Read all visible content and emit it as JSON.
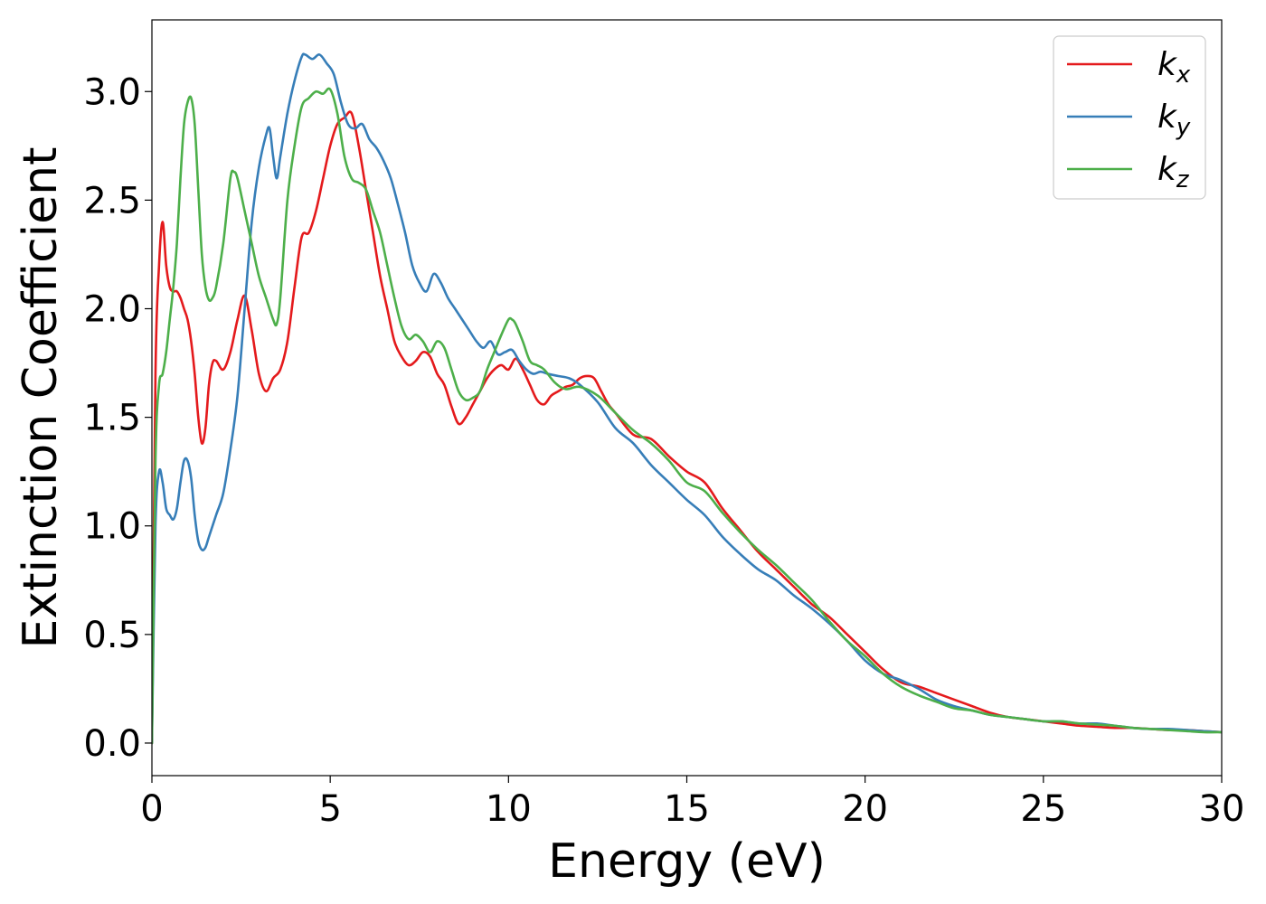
{
  "chart_data": {
    "type": "line",
    "title": "",
    "xlabel": "Energy (eV)",
    "ylabel": "Extinction Coefficient",
    "xlim": [
      0,
      30
    ],
    "ylim": [
      -0.15,
      3.33
    ],
    "xticks": [
      0,
      5,
      10,
      15,
      20,
      25,
      30
    ],
    "xtick_labels": [
      "0",
      "5",
      "10",
      "15",
      "20",
      "25",
      "30"
    ],
    "yticks": [
      0.0,
      0.5,
      1.0,
      1.5,
      2.0,
      2.5,
      3.0
    ],
    "ytick_labels": [
      "0.0",
      "0.5",
      "1.0",
      "1.5",
      "2.0",
      "2.5",
      "3.0"
    ],
    "grid": false,
    "legend": "top-right",
    "series": [
      {
        "name": "k",
        "subscript": "x",
        "color": "#e41a1c",
        "x": [
          0,
          0.1,
          0.2,
          0.3,
          0.4,
          0.5,
          0.6,
          0.7,
          0.8,
          0.9,
          1.0,
          1.1,
          1.2,
          1.3,
          1.4,
          1.5,
          1.6,
          1.7,
          1.8,
          2.0,
          2.2,
          2.4,
          2.6,
          2.8,
          3.0,
          3.2,
          3.4,
          3.6,
          3.8,
          4.0,
          4.2,
          4.4,
          4.6,
          4.8,
          5.0,
          5.2,
          5.4,
          5.6,
          5.8,
          6.0,
          6.2,
          6.4,
          6.6,
          6.8,
          7.0,
          7.2,
          7.4,
          7.6,
          7.8,
          8.0,
          8.2,
          8.4,
          8.6,
          8.8,
          9.0,
          9.2,
          9.4,
          9.6,
          9.8,
          10.0,
          10.2,
          10.4,
          10.6,
          10.8,
          11.0,
          11.2,
          11.4,
          11.6,
          11.8,
          12.0,
          12.2,
          12.4,
          12.6,
          12.8,
          13.0,
          13.5,
          14.0,
          14.5,
          15.0,
          15.5,
          16.0,
          16.5,
          17.0,
          17.5,
          18.0,
          18.5,
          19.0,
          19.5,
          20.0,
          20.5,
          21.0,
          21.5,
          22.0,
          22.5,
          23.0,
          23.5,
          24.0,
          24.5,
          25.0,
          25.5,
          26.0,
          26.5,
          27.0,
          27.5,
          28.0,
          28.5,
          29.0,
          29.5,
          30.0
        ],
        "y": [
          0.0,
          1.7,
          2.2,
          2.4,
          2.2,
          2.1,
          2.08,
          2.08,
          2.05,
          2.0,
          1.95,
          1.85,
          1.7,
          1.5,
          1.38,
          1.45,
          1.65,
          1.75,
          1.76,
          1.72,
          1.8,
          1.95,
          2.06,
          1.9,
          1.7,
          1.62,
          1.68,
          1.72,
          1.85,
          2.1,
          2.33,
          2.35,
          2.45,
          2.6,
          2.75,
          2.85,
          2.88,
          2.9,
          2.75,
          2.55,
          2.35,
          2.15,
          2.0,
          1.85,
          1.78,
          1.74,
          1.76,
          1.8,
          1.78,
          1.7,
          1.65,
          1.55,
          1.47,
          1.5,
          1.56,
          1.62,
          1.68,
          1.72,
          1.74,
          1.72,
          1.77,
          1.72,
          1.65,
          1.58,
          1.56,
          1.6,
          1.62,
          1.64,
          1.65,
          1.68,
          1.69,
          1.68,
          1.62,
          1.56,
          1.52,
          1.42,
          1.4,
          1.32,
          1.25,
          1.2,
          1.08,
          0.98,
          0.88,
          0.8,
          0.72,
          0.64,
          0.58,
          0.5,
          0.42,
          0.34,
          0.28,
          0.26,
          0.23,
          0.2,
          0.17,
          0.14,
          0.12,
          0.11,
          0.1,
          0.09,
          0.08,
          0.075,
          0.07,
          0.07,
          0.065,
          0.06,
          0.06,
          0.055,
          0.05
        ]
      },
      {
        "name": "k",
        "subscript": "y",
        "color": "#377eb8",
        "x": [
          0,
          0.1,
          0.2,
          0.3,
          0.4,
          0.5,
          0.6,
          0.7,
          0.8,
          0.9,
          1.0,
          1.1,
          1.2,
          1.3,
          1.4,
          1.5,
          1.6,
          1.8,
          2.0,
          2.2,
          2.4,
          2.6,
          2.8,
          3.0,
          3.2,
          3.3,
          3.4,
          3.5,
          3.6,
          3.8,
          4.0,
          4.2,
          4.3,
          4.5,
          4.7,
          4.9,
          5.1,
          5.3,
          5.5,
          5.7,
          5.9,
          6.1,
          6.3,
          6.5,
          6.7,
          6.9,
          7.1,
          7.3,
          7.5,
          7.7,
          7.9,
          8.1,
          8.3,
          8.5,
          8.7,
          8.9,
          9.1,
          9.3,
          9.5,
          9.7,
          9.9,
          10.1,
          10.3,
          10.5,
          10.7,
          10.9,
          11.1,
          11.4,
          11.7,
          12.0,
          12.5,
          13.0,
          13.5,
          14.0,
          14.5,
          15.0,
          15.5,
          16.0,
          16.5,
          17.0,
          17.5,
          18.0,
          18.5,
          19.0,
          19.5,
          20.0,
          20.5,
          21.0,
          21.5,
          22.0,
          22.5,
          23.0,
          23.5,
          24.0,
          24.5,
          25.0,
          25.5,
          26.0,
          26.5,
          27.0,
          27.5,
          28.0,
          28.5,
          29.0,
          29.5,
          30.0
        ],
        "y": [
          0.0,
          1.0,
          1.25,
          1.2,
          1.08,
          1.05,
          1.03,
          1.08,
          1.2,
          1.3,
          1.3,
          1.22,
          1.05,
          0.93,
          0.89,
          0.9,
          0.95,
          1.05,
          1.15,
          1.35,
          1.6,
          2.0,
          2.4,
          2.65,
          2.8,
          2.83,
          2.7,
          2.6,
          2.7,
          2.9,
          3.05,
          3.16,
          3.17,
          3.15,
          3.17,
          3.13,
          3.08,
          2.95,
          2.85,
          2.83,
          2.85,
          2.78,
          2.74,
          2.68,
          2.6,
          2.48,
          2.35,
          2.2,
          2.12,
          2.08,
          2.16,
          2.12,
          2.05,
          2.0,
          1.95,
          1.9,
          1.85,
          1.82,
          1.85,
          1.79,
          1.8,
          1.81,
          1.76,
          1.72,
          1.7,
          1.71,
          1.7,
          1.69,
          1.68,
          1.65,
          1.57,
          1.45,
          1.38,
          1.28,
          1.2,
          1.12,
          1.05,
          0.95,
          0.87,
          0.8,
          0.75,
          0.68,
          0.62,
          0.55,
          0.47,
          0.38,
          0.32,
          0.29,
          0.25,
          0.2,
          0.17,
          0.15,
          0.13,
          0.12,
          0.11,
          0.1,
          0.1,
          0.09,
          0.09,
          0.08,
          0.07,
          0.065,
          0.065,
          0.06,
          0.055,
          0.05
        ]
      },
      {
        "name": "k",
        "subscript": "z",
        "color": "#4daf4a",
        "x": [
          0,
          0.1,
          0.2,
          0.3,
          0.4,
          0.5,
          0.6,
          0.7,
          0.8,
          0.9,
          1.0,
          1.1,
          1.2,
          1.3,
          1.4,
          1.5,
          1.6,
          1.7,
          1.8,
          2.0,
          2.2,
          2.3,
          2.4,
          2.6,
          2.8,
          3.0,
          3.2,
          3.4,
          3.5,
          3.6,
          3.8,
          4.0,
          4.2,
          4.4,
          4.6,
          4.8,
          5.0,
          5.2,
          5.4,
          5.6,
          5.8,
          6.0,
          6.2,
          6.4,
          6.6,
          6.8,
          7.0,
          7.2,
          7.4,
          7.6,
          7.8,
          8.0,
          8.2,
          8.4,
          8.6,
          8.8,
          9.0,
          9.2,
          9.4,
          9.6,
          9.8,
          10.0,
          10.1,
          10.2,
          10.4,
          10.6,
          10.8,
          11.0,
          11.3,
          11.6,
          12.0,
          12.5,
          13.0,
          13.5,
          14.0,
          14.5,
          15.0,
          15.5,
          16.0,
          16.5,
          17.0,
          17.5,
          18.0,
          18.5,
          19.0,
          19.5,
          20.0,
          20.5,
          21.0,
          21.5,
          22.0,
          22.5,
          23.0,
          23.5,
          24.0,
          24.5,
          25.0,
          25.5,
          26.0,
          26.5,
          27.0,
          27.5,
          28.0,
          28.5,
          29.0,
          29.5,
          30.0
        ],
        "y": [
          0.0,
          1.3,
          1.65,
          1.7,
          1.8,
          1.95,
          2.1,
          2.3,
          2.6,
          2.85,
          2.95,
          2.97,
          2.85,
          2.55,
          2.25,
          2.1,
          2.04,
          2.05,
          2.1,
          2.3,
          2.6,
          2.63,
          2.6,
          2.45,
          2.3,
          2.15,
          2.05,
          1.95,
          1.93,
          2.05,
          2.5,
          2.75,
          2.93,
          2.97,
          3.0,
          2.99,
          3.01,
          2.9,
          2.7,
          2.6,
          2.58,
          2.55,
          2.45,
          2.35,
          2.2,
          2.05,
          1.92,
          1.86,
          1.88,
          1.85,
          1.8,
          1.85,
          1.82,
          1.72,
          1.62,
          1.58,
          1.59,
          1.62,
          1.72,
          1.8,
          1.88,
          1.95,
          1.95,
          1.93,
          1.85,
          1.76,
          1.74,
          1.72,
          1.66,
          1.63,
          1.64,
          1.6,
          1.52,
          1.44,
          1.38,
          1.3,
          1.2,
          1.16,
          1.06,
          0.97,
          0.89,
          0.82,
          0.74,
          0.66,
          0.56,
          0.47,
          0.4,
          0.32,
          0.26,
          0.22,
          0.19,
          0.16,
          0.15,
          0.13,
          0.12,
          0.11,
          0.1,
          0.1,
          0.09,
          0.085,
          0.08,
          0.07,
          0.065,
          0.06,
          0.055,
          0.05,
          0.05
        ]
      }
    ]
  }
}
